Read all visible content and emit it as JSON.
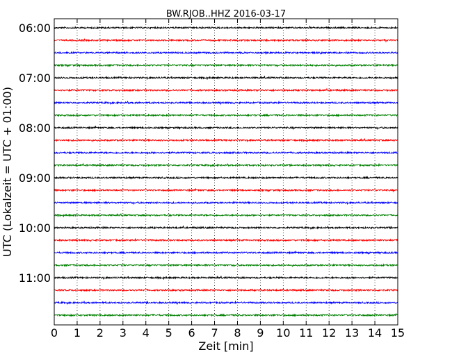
{
  "chart_data": {
    "type": "line",
    "title": "BW.RJOB..HHZ 2016-03-17",
    "xlabel": "Zeit  [min]",
    "ylabel": "UTC (Lokalzeit = UTC + 01:00)",
    "xlim": [
      0,
      15
    ],
    "x_ticks": [
      "0",
      "1",
      "2",
      "3",
      "4",
      "5",
      "6",
      "7",
      "8",
      "9",
      "10",
      "11",
      "12",
      "13",
      "14",
      "15"
    ],
    "y_ticks": [
      "06:00",
      "07:00",
      "08:00",
      "09:00",
      "10:00",
      "11:00"
    ],
    "trace_start_times": [
      "06:00",
      "06:15",
      "06:30",
      "06:45",
      "07:00",
      "07:15",
      "07:30",
      "07:45",
      "08:00",
      "08:15",
      "08:30",
      "08:45",
      "09:00",
      "09:15",
      "09:30",
      "09:45",
      "10:00",
      "10:15",
      "10:30",
      "10:45",
      "11:00",
      "11:15",
      "11:30",
      "11:45"
    ],
    "trace_duration_min": 15,
    "trace_colors": [
      "#000000",
      "#ff0000",
      "#0000ff",
      "#008000"
    ],
    "vertical_grid": "dotted",
    "legend": "none"
  }
}
